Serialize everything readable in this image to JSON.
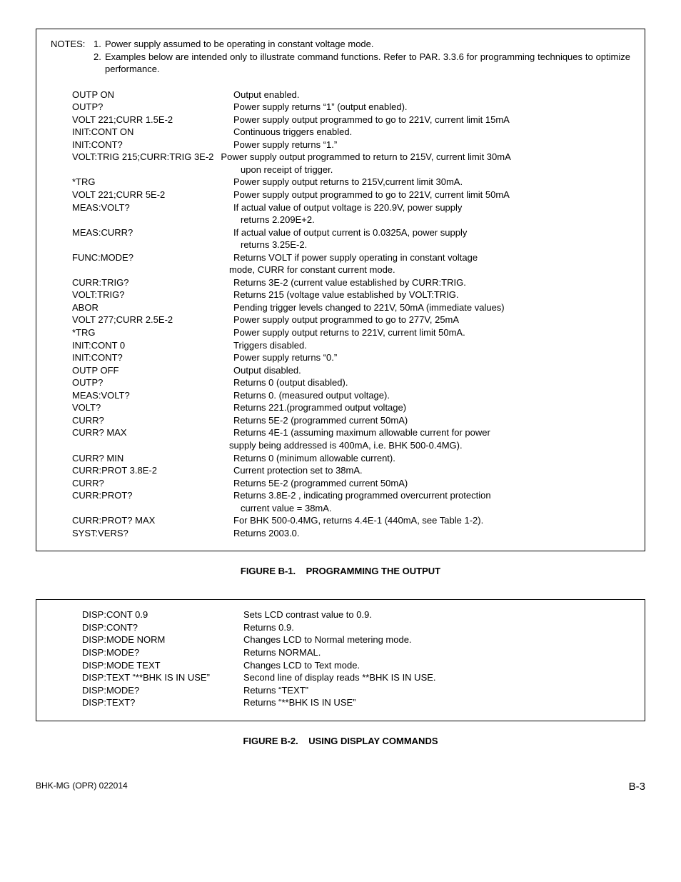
{
  "notes": {
    "label": "NOTES:",
    "items": [
      {
        "num": "1.",
        "text": "Power supply assumed to be operating in constant voltage mode."
      },
      {
        "num": "2.",
        "text": "Examples below are intended only to illustrate command functions. Refer to PAR. 3.3.6 for programming techniques to optimize performance."
      }
    ]
  },
  "fig1": {
    "caption": "FIGURE B-1.    PROGRAMMING THE OUTPUT",
    "rows": [
      {
        "cmd": "OUTP ON",
        "desc": "Output enabled."
      },
      {
        "cmd": "OUTP?",
        "desc": "Power supply returns “1” (output enabled)."
      },
      {
        "cmd": "VOLT 221;CURR 1.5E-2",
        "desc": "Power supply output programmed to go to 221V, current limit 15mA"
      },
      {
        "cmd": "INIT:CONT ON",
        "desc": "Continuous triggers enabled."
      },
      {
        "cmd": "INIT:CONT?",
        "desc": "Power supply returns “1.”"
      },
      {
        "cmd": "VOLT:TRIG 215;CURR:TRIG 3E-2",
        "desc": "Power supply output programmed to return to 215V, current limit 30mA",
        "wide": true,
        "cont": "upon receipt of trigger.",
        "cont_indent": true
      },
      {
        "cmd": "*TRG",
        "desc": "Power supply output returns to 215V,current limit 30mA."
      },
      {
        "cmd": "VOLT 221;CURR 5E-2",
        "desc": "Power supply output programmed to go to 221V, current limit 50mA"
      },
      {
        "cmd": "MEAS:VOLT?",
        "desc": "If actual value of output voltage is 220.9V, power supply",
        "cont": "returns 2.209E+2.",
        "cont_indent": true
      },
      {
        "cmd": "MEAS:CURR?",
        "desc": "If actual value of output current is 0.0325A, power supply",
        "cont": "returns 3.25E-2.",
        "cont_indent": true
      },
      {
        "cmd": "FUNC:MODE?",
        "desc": "Returns VOLT if power supply operating in constant voltage",
        "cont": "mode, CURR for constant current mode."
      },
      {
        "cmd": "CURR:TRIG?",
        "desc": "Returns 3E-2 (current value established by CURR:TRIG."
      },
      {
        "cmd": "VOLT:TRIG?",
        "desc": "Returns 215 (voltage value established by VOLT:TRIG."
      },
      {
        "cmd": "ABOR",
        "desc": "Pending trigger levels changed to 221V, 50mA (immediate values)"
      },
      {
        "cmd": "VOLT 277;CURR 2.5E-2",
        "desc": "Power supply output programmed to go to 277V, 25mA"
      },
      {
        "cmd": "*TRG",
        "desc": "Power supply output returns to 221V, current limit 50mA."
      },
      {
        "cmd": "INIT:CONT 0",
        "desc": "Triggers disabled."
      },
      {
        "cmd": "INIT:CONT?",
        "desc": "Power supply returns “0.”"
      },
      {
        "cmd": "OUTP OFF",
        "desc": "Output disabled."
      },
      {
        "cmd": "OUTP?",
        "desc": "Returns 0 (output disabled)."
      },
      {
        "cmd": "MEAS:VOLT?",
        "desc": "Returns 0. (measured output voltage)."
      },
      {
        "cmd": "VOLT?",
        "desc": "Returns 221.(programmed output voltage)"
      },
      {
        "cmd": "CURR?",
        "desc": "Returns 5E-2 (programmed current 50mA)"
      },
      {
        "cmd": "CURR? MAX",
        "desc": "Returns 4E-1 (assuming maximum allowable current for power",
        "cont": "supply being addressed is 400mA, i.e. BHK 500-0.4MG)."
      },
      {
        "cmd": "CURR? MIN",
        "desc": "Returns 0 (minimum allowable current)."
      },
      {
        "cmd": "CURR:PROT 3.8E-2",
        "desc": "Current protection set to 38mA."
      },
      {
        "cmd": "CURR?",
        "desc": "Returns 5E-2 (programmed current 50mA)"
      },
      {
        "cmd": "CURR:PROT?",
        "desc": "Returns 3.8E-2 , indicating programmed overcurrent protection",
        "cont": "current value = 38mA.",
        "cont_indent": true
      },
      {
        "cmd": "CURR:PROT? MAX",
        "desc": "For BHK 500-0.4MG, returns 4.4E-1 (440mA, see Table 1-2)."
      },
      {
        "cmd": "SYST:VERS?",
        "desc": "Returns 2003.0."
      }
    ]
  },
  "fig2": {
    "caption": "FIGURE B-2.    USING DISPLAY COMMANDS",
    "rows": [
      {
        "cmd": "DISP:CONT 0.9",
        "desc": "Sets LCD contrast value to 0.9."
      },
      {
        "cmd": "DISP:CONT?",
        "desc": "Returns 0.9."
      },
      {
        "cmd": "DISP:MODE NORM",
        "desc": "Changes LCD to Normal metering mode."
      },
      {
        "cmd": "DISP:MODE?",
        "desc": "Returns NORMAL."
      },
      {
        "cmd": "DISP:MODE TEXT",
        "desc": "Changes LCD to Text mode."
      },
      {
        "cmd": "DISP:TEXT “**BHK IS IN USE”",
        "desc": "Second line of display reads **BHK IS IN USE."
      },
      {
        "cmd": "DISP:MODE?",
        "desc": "Returns “TEXT”"
      },
      {
        "cmd": "DISP:TEXT?",
        "desc": "Returns “**BHK IS IN USE”"
      }
    ]
  },
  "footer": {
    "left": "BHK-MG (OPR) 022014",
    "right": "B-3"
  }
}
